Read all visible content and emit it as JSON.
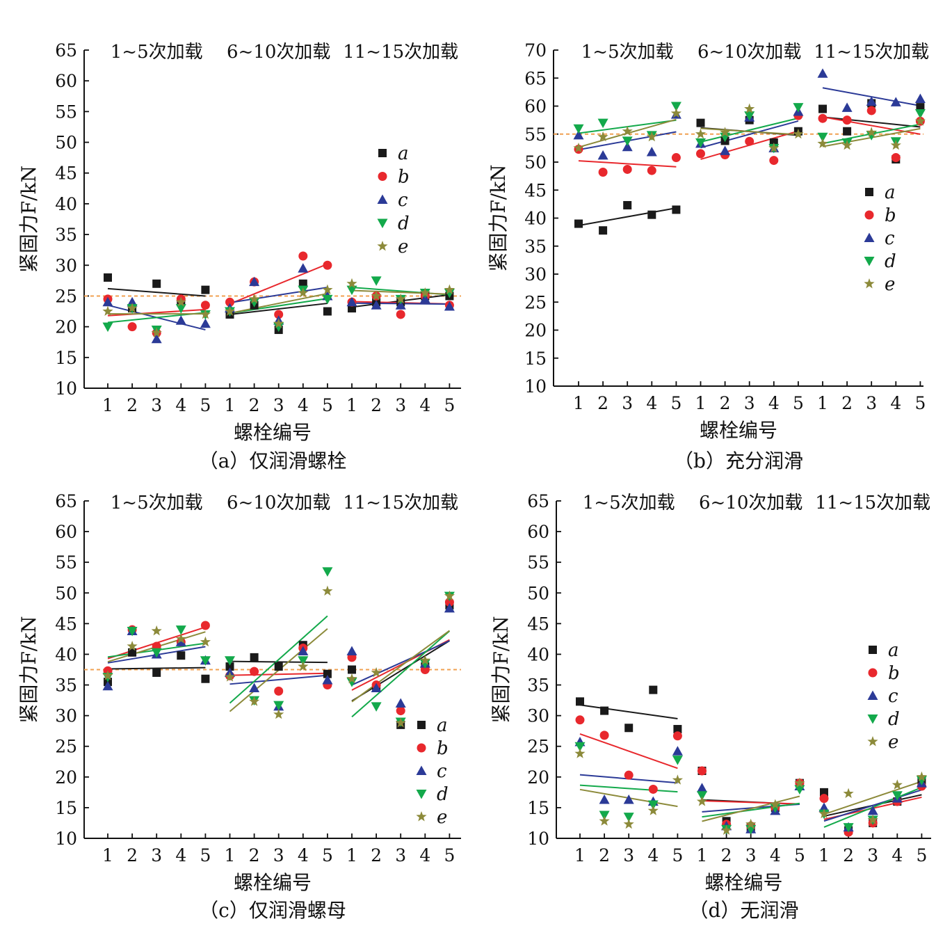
{
  "colors": {
    "a": "#1a1a1a",
    "b": "#e8282d",
    "c": "#2b3a97",
    "d": "#13a94b",
    "e": "#8c8a3a",
    "reference_line": "#f0a050"
  },
  "chart_data": [
    {
      "type": "scatter",
      "caption": "（a）仅润滑螺栓",
      "ylabel": "紧固力F/kN",
      "xlabel": "螺栓编号",
      "group_labels": [
        "1~5次加载",
        "6~10次加载",
        "11~15次加载"
      ],
      "x_ticks": [
        "1",
        "2",
        "3",
        "4",
        "5",
        "1",
        "2",
        "3",
        "4",
        "5",
        "1",
        "2",
        "3",
        "4",
        "5"
      ],
      "ylim": [
        10,
        65
      ],
      "y_ticks": [
        10,
        15,
        20,
        25,
        30,
        35,
        40,
        45,
        50,
        55,
        60,
        65
      ],
      "reference_y": 25,
      "legend_position": "right-middle",
      "series": [
        {
          "name": "a",
          "marker": "square",
          "values": [
            28.0,
            23.0,
            27.0,
            24.0,
            26.0,
            22.0,
            23.5,
            19.5,
            27.0,
            22.5,
            23.0,
            24.0,
            24.0,
            25.0,
            25.0
          ]
        },
        {
          "name": "b",
          "marker": "circle",
          "values": [
            24.5,
            20.0,
            19.0,
            24.5,
            23.5,
            24.0,
            27.3,
            22.0,
            31.5,
            30.0,
            24.0,
            25.0,
            22.0,
            25.0,
            23.5
          ]
        },
        {
          "name": "c",
          "marker": "triangle",
          "values": [
            24.0,
            24.0,
            18.0,
            21.0,
            20.5,
            23.0,
            27.3,
            21.0,
            29.5,
            25.0,
            24.0,
            23.5,
            23.5,
            24.5,
            23.3
          ]
        },
        {
          "name": "d",
          "marker": "tri-down",
          "values": [
            20.0,
            23.0,
            19.5,
            23.0,
            22.0,
            22.5,
            24.0,
            20.0,
            26.0,
            24.5,
            26.0,
            27.5,
            24.5,
            25.5,
            25.5
          ]
        },
        {
          "name": "e",
          "marker": "star",
          "values": [
            22.5,
            23.0,
            19.0,
            24.0,
            22.0,
            22.5,
            24.5,
            20.5,
            25.5,
            26.0,
            27.0,
            25.0,
            24.5,
            25.5,
            26.0
          ]
        }
      ]
    },
    {
      "type": "scatter",
      "caption": "（b）充分润滑",
      "ylabel": "紧固力F/kN",
      "xlabel": "螺栓编号",
      "group_labels": [
        "1~5次加载",
        "6~10次加载",
        "11~15次加载"
      ],
      "x_ticks": [
        "1",
        "2",
        "3",
        "4",
        "5",
        "1",
        "2",
        "3",
        "4",
        "5",
        "1",
        "2",
        "3",
        "4",
        "5"
      ],
      "ylim": [
        10,
        70
      ],
      "y_ticks": [
        10,
        15,
        20,
        25,
        30,
        35,
        40,
        45,
        50,
        55,
        60,
        65,
        70
      ],
      "reference_y": 55,
      "legend_position": "right-middle",
      "series": [
        {
          "name": "a",
          "marker": "square",
          "values": [
            39.0,
            37.8,
            42.3,
            40.6,
            41.5,
            57.0,
            53.8,
            57.5,
            53.5,
            55.5,
            59.5,
            55.5,
            60.5,
            50.5,
            59.8
          ]
        },
        {
          "name": "b",
          "marker": "circle",
          "values": [
            52.3,
            48.2,
            48.7,
            48.5,
            50.8,
            51.5,
            51.3,
            53.7,
            50.3,
            58.3,
            57.8,
            57.5,
            59.2,
            50.8,
            57.3
          ]
        },
        {
          "name": "c",
          "marker": "triangle",
          "values": [
            54.8,
            51.2,
            52.7,
            51.8,
            58.5,
            53.3,
            52.0,
            58.0,
            52.5,
            59.0,
            65.8,
            59.7,
            60.8,
            60.7,
            61.3
          ]
        },
        {
          "name": "d",
          "marker": "tri-down",
          "values": [
            56.0,
            57.0,
            53.8,
            54.8,
            60.0,
            53.5,
            54.5,
            58.3,
            52.5,
            59.8,
            54.5,
            53.5,
            54.8,
            53.7,
            58.7
          ]
        },
        {
          "name": "e",
          "marker": "star",
          "values": [
            52.5,
            54.5,
            55.5,
            54.5,
            58.7,
            55.0,
            55.3,
            59.5,
            52.5,
            55.0,
            53.3,
            53.0,
            55.3,
            53.0,
            57.3
          ]
        }
      ]
    },
    {
      "type": "scatter",
      "caption": "（c）仅润滑螺母",
      "ylabel": "紧固力F/kN",
      "xlabel": "螺栓编号",
      "group_labels": [
        "1~5次加载",
        "6~10次加载",
        "11~15次加载"
      ],
      "x_ticks": [
        "1",
        "2",
        "3",
        "4",
        "5",
        "1",
        "2",
        "3",
        "4",
        "5",
        "1",
        "2",
        "3",
        "4",
        "5"
      ],
      "ylim": [
        10,
        65
      ],
      "y_ticks": [
        10,
        15,
        20,
        25,
        30,
        35,
        40,
        45,
        50,
        55,
        60,
        65
      ],
      "reference_y": 37.5,
      "legend_position": "right-bottom",
      "series": [
        {
          "name": "a",
          "marker": "square",
          "values": [
            35.5,
            40.3,
            37.0,
            39.8,
            36.0,
            38.0,
            39.5,
            38.0,
            41.5,
            36.8,
            37.5,
            34.5,
            28.5,
            38.0,
            48.0
          ]
        },
        {
          "name": "b",
          "marker": "circle",
          "values": [
            37.3,
            44.0,
            41.3,
            42.0,
            44.7,
            36.5,
            37.2,
            34.0,
            41.0,
            35.0,
            39.5,
            35.0,
            30.8,
            37.5,
            48.5
          ]
        },
        {
          "name": "c",
          "marker": "triangle",
          "values": [
            34.8,
            43.8,
            40.0,
            42.0,
            39.0,
            37.0,
            34.5,
            31.5,
            40.5,
            35.8,
            40.5,
            34.5,
            32.0,
            38.5,
            47.5
          ]
        },
        {
          "name": "d",
          "marker": "tri-down",
          "values": [
            36.3,
            43.8,
            40.3,
            44.0,
            39.0,
            39.0,
            32.5,
            31.7,
            39.0,
            53.5,
            35.5,
            31.5,
            29.0,
            38.5,
            49.5
          ]
        },
        {
          "name": "e",
          "marker": "star",
          "values": [
            36.5,
            41.3,
            43.8,
            42.5,
            42.0,
            36.3,
            32.3,
            30.2,
            38.0,
            50.3,
            36.0,
            37.0,
            28.8,
            39.0,
            49.5
          ]
        }
      ]
    },
    {
      "type": "scatter",
      "caption": "（d）无润滑",
      "ylabel": "紧固力F/kN",
      "xlabel": "螺栓编号",
      "group_labels": [
        "1~5次加载",
        "6~10次加载",
        "11~15次加载"
      ],
      "x_ticks": [
        "1",
        "2",
        "3",
        "4",
        "5",
        "1",
        "2",
        "3",
        "4",
        "5",
        "1",
        "2",
        "3",
        "4",
        "5"
      ],
      "ylim": [
        10,
        65
      ],
      "y_ticks": [
        10,
        15,
        20,
        25,
        30,
        35,
        40,
        45,
        50,
        55,
        60,
        65
      ],
      "reference_y": null,
      "legend_position": "right-middle",
      "series": [
        {
          "name": "a",
          "marker": "square",
          "values": [
            32.3,
            30.8,
            28.0,
            34.2,
            27.8,
            21.0,
            12.8,
            11.8,
            15.0,
            19.0,
            17.5,
            11.3,
            12.5,
            16.0,
            19.5
          ]
        },
        {
          "name": "b",
          "marker": "circle",
          "values": [
            29.3,
            26.8,
            20.3,
            18.0,
            26.7,
            21.0,
            12.3,
            12.0,
            15.0,
            19.0,
            16.5,
            11.0,
            12.5,
            16.0,
            18.5
          ]
        },
        {
          "name": "c",
          "marker": "triangle",
          "values": [
            25.7,
            16.3,
            16.3,
            16.0,
            24.2,
            18.2,
            12.0,
            11.5,
            14.5,
            18.5,
            15.0,
            11.8,
            14.5,
            16.5,
            19.0
          ]
        },
        {
          "name": "d",
          "marker": "tri-down",
          "values": [
            25.0,
            13.8,
            13.5,
            15.5,
            22.8,
            17.0,
            11.5,
            11.5,
            15.0,
            18.0,
            14.0,
            11.8,
            13.0,
            17.0,
            19.5
          ]
        },
        {
          "name": "e",
          "marker": "star",
          "values": [
            23.8,
            12.8,
            12.3,
            14.5,
            19.5,
            16.0,
            11.3,
            12.3,
            15.5,
            19.0,
            14.0,
            17.3,
            13.0,
            18.7,
            20.0
          ]
        }
      ]
    }
  ]
}
